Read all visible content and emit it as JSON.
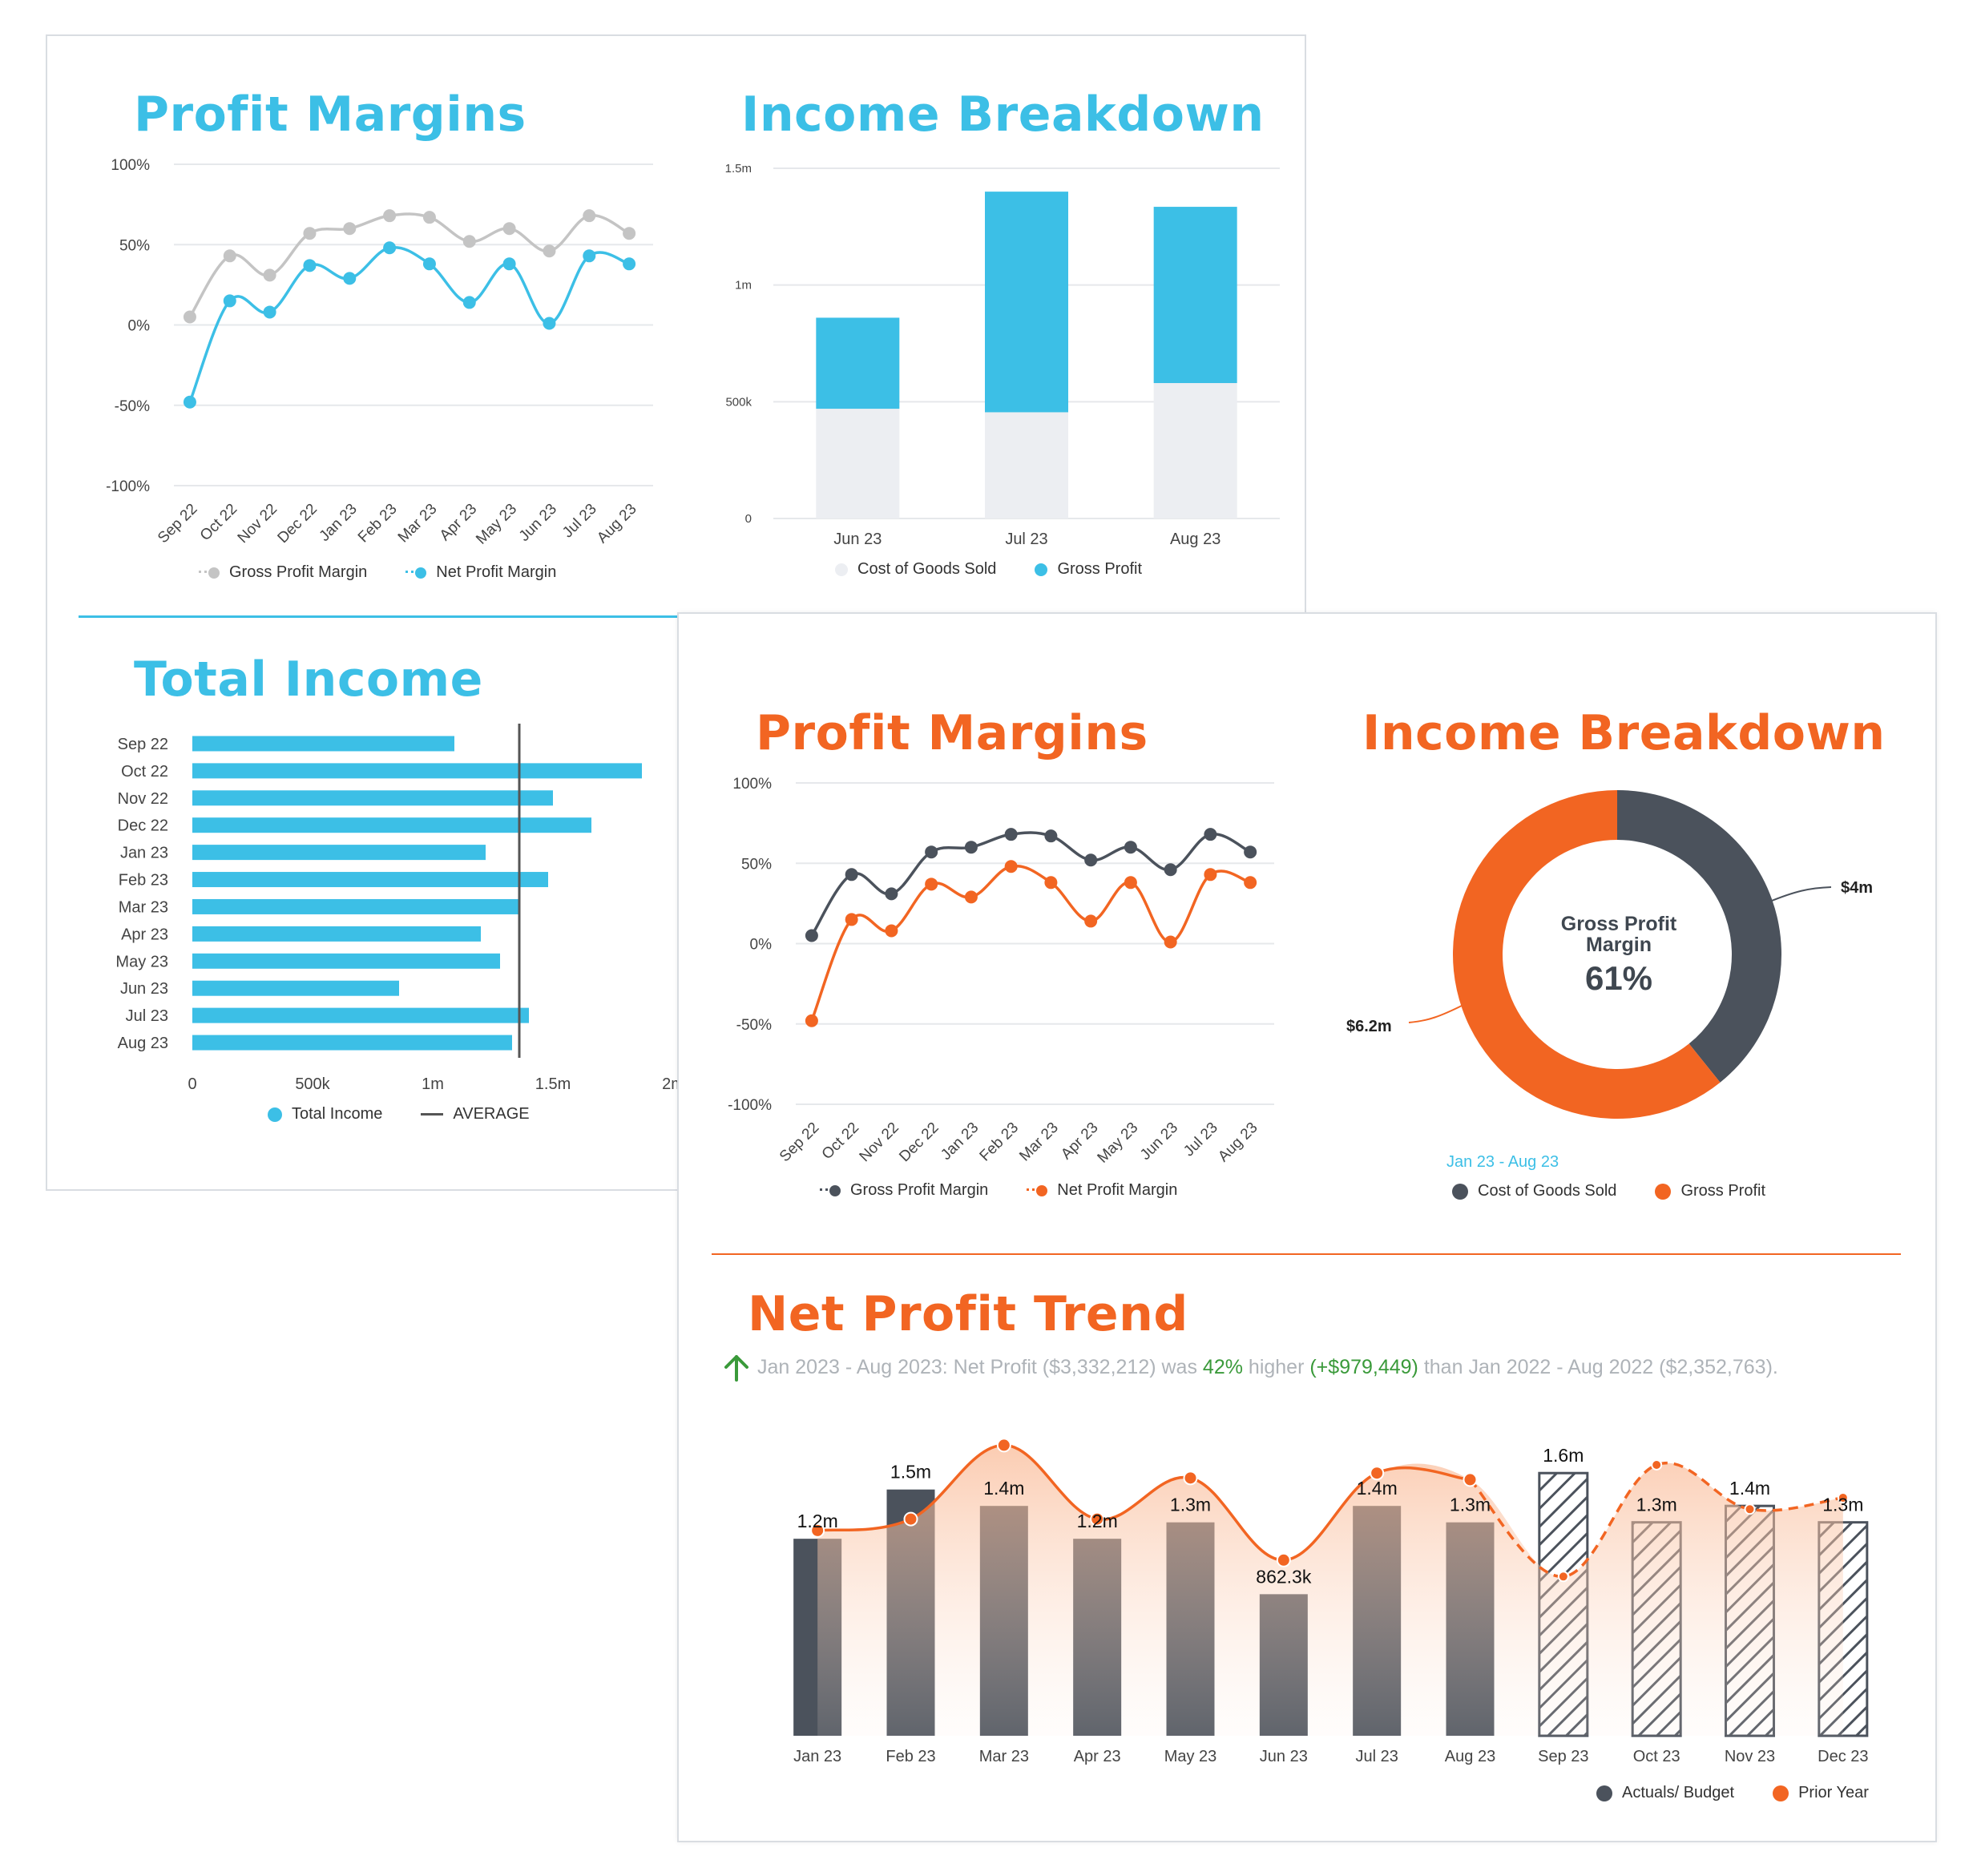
{
  "blue_dashboard": {
    "profit_margins": {
      "title": "Profit Margins",
      "legend": [
        "Gross Profit Margin",
        "Net Profit Margin"
      ]
    },
    "income_breakdown": {
      "title": "Income Breakdown",
      "legend": [
        "Cost of Goods Sold",
        "Gross Profit"
      ]
    },
    "total_income": {
      "title": "Total Income",
      "legend": [
        "Total Income",
        "AVERAGE"
      ]
    }
  },
  "orange_dashboard": {
    "profit_margins": {
      "title": "Profit Margins",
      "legend": [
        "Gross Profit Margin",
        "Net Profit Margin"
      ]
    },
    "income_breakdown": {
      "title": "Income Breakdown",
      "center_label_line1": "Gross Profit",
      "center_label_line2": "Margin",
      "center_value": "61%",
      "slice_label_cogs": "$4m",
      "slice_label_gp": "$6.2m",
      "date_range": "Jan 23 - Aug 23",
      "legend": [
        "Cost of Goods Sold",
        "Gross Profit"
      ]
    },
    "net_profit_trend": {
      "title": "Net Profit Trend",
      "summary_prefix": "Jan 2023 - Aug 2023: Net Profit ($3,332,212) was ",
      "summary_pct": "42%",
      "summary_mid": " higher ",
      "summary_diff": "(+$979,449)",
      "summary_suffix": " than Jan 2022 - Aug 2022 ($2,352,763).",
      "legend": [
        "Actuals/ Budget",
        "Prior Year"
      ]
    }
  },
  "colors": {
    "blue": "#3cbfe6",
    "grey_line": "#c4c4c4",
    "light_bar": "#eceef2",
    "orange": "#f26522",
    "dark": "#4b525c"
  },
  "chart_data": [
    {
      "id": "blue_profit_margins",
      "type": "line",
      "categories": [
        "Sep 22",
        "Oct 22",
        "Nov 22",
        "Dec 22",
        "Jan 23",
        "Feb 23",
        "Mar 23",
        "Apr 23",
        "May 23",
        "Jun 23",
        "Jul 23",
        "Aug 23"
      ],
      "series": [
        {
          "name": "Gross Profit Margin",
          "values": [
            5,
            43,
            31,
            57,
            60,
            68,
            67,
            52,
            60,
            46,
            68,
            57
          ]
        },
        {
          "name": "Net Profit Margin",
          "values": [
            -48,
            15,
            8,
            37,
            29,
            48,
            38,
            14,
            38,
            1,
            43,
            38
          ]
        }
      ],
      "ylim": [
        -100,
        100
      ],
      "yticks": [
        "100%",
        "50%",
        "0%",
        "-50%",
        "-100%"
      ],
      "ytick_values": [
        100,
        50,
        0,
        -50,
        -100
      ],
      "grid": true,
      "legend_position": "bottom"
    },
    {
      "id": "blue_income_breakdown",
      "type": "bar",
      "stacked": true,
      "categories": [
        "Jun 23",
        "Jul 23",
        "Aug 23"
      ],
      "series": [
        {
          "name": "Cost of Goods Sold",
          "values": [
            470000,
            455000,
            580000
          ]
        },
        {
          "name": "Gross Profit",
          "values": [
            390000,
            945000,
            755000
          ]
        }
      ],
      "ylim": [
        0,
        1500000
      ],
      "yticks": [
        "1.5m",
        "1m",
        "500k",
        "0"
      ],
      "ytick_values": [
        1500000,
        1000000,
        500000,
        0
      ],
      "grid": true,
      "legend_position": "bottom"
    },
    {
      "id": "blue_total_income",
      "type": "bar",
      "orientation": "horizontal",
      "categories": [
        "Sep 22",
        "Oct 22",
        "Nov 22",
        "Dec 22",
        "Jan 23",
        "Feb 23",
        "Mar 23",
        "Apr 23",
        "May 23",
        "Jun 23",
        "Jul 23",
        "Aug 23"
      ],
      "series": [
        {
          "name": "Total Income",
          "values": [
            1090000,
            1870000,
            1500000,
            1660000,
            1220000,
            1480000,
            1360000,
            1200000,
            1280000,
            860000,
            1400000,
            1330000
          ]
        }
      ],
      "average": 1360000,
      "xlim": [
        0,
        2000000
      ],
      "xticks": [
        "0",
        "500k",
        "1m",
        "1.5m",
        "2m"
      ],
      "xtick_values": [
        0,
        500000,
        1000000,
        1500000,
        2000000
      ],
      "legend_position": "bottom"
    },
    {
      "id": "orange_profit_margins",
      "type": "line",
      "categories": [
        "Sep 22",
        "Oct 22",
        "Nov 22",
        "Dec 22",
        "Jan 23",
        "Feb 23",
        "Mar 23",
        "Apr 23",
        "May 23",
        "Jun 23",
        "Jul 23",
        "Aug 23"
      ],
      "series": [
        {
          "name": "Gross Profit Margin",
          "values": [
            5,
            43,
            31,
            57,
            60,
            68,
            67,
            52,
            60,
            46,
            68,
            57
          ]
        },
        {
          "name": "Net Profit Margin",
          "values": [
            -48,
            15,
            8,
            37,
            29,
            48,
            38,
            14,
            38,
            1,
            43,
            38
          ]
        }
      ],
      "ylim": [
        -100,
        100
      ],
      "yticks": [
        "100%",
        "50%",
        "0%",
        "-50%",
        "-100%"
      ],
      "ytick_values": [
        100,
        50,
        0,
        -50,
        -100
      ],
      "grid": true,
      "legend_position": "bottom"
    },
    {
      "id": "orange_income_breakdown",
      "type": "pie",
      "donut": true,
      "categories": [
        "Cost of Goods Sold",
        "Gross Profit"
      ],
      "values": [
        4.0,
        6.2
      ],
      "unit": "m"
    },
    {
      "id": "orange_net_profit_trend",
      "type": "bar",
      "categories": [
        "Jan 23",
        "Feb 23",
        "Mar 23",
        "Apr 23",
        "May 23",
        "Jun 23",
        "Jul 23",
        "Aug 23",
        "Sep 23",
        "Oct 23",
        "Nov 23",
        "Dec 23"
      ],
      "series": [
        {
          "name": "Actuals/ Budget",
          "values": [
            1.2,
            1.5,
            1.4,
            1.2,
            1.3,
            0.8623,
            1.4,
            1.3,
            1.6,
            1.3,
            1.4,
            1.3
          ],
          "labels": [
            "1.2m",
            "1.5m",
            "1.4m",
            "1.2m",
            "1.3m",
            "862.3k",
            "1.4m",
            "1.3m",
            "1.6m",
            "1.3m",
            "1.4m",
            "1.3m"
          ],
          "budget_from_index": 8
        },
        {
          "name": "Prior Year",
          "type": "area",
          "values": [
            1.25,
            1.32,
            1.77,
            1.32,
            1.57,
            1.07,
            1.6,
            1.56,
            0.97,
            1.65,
            1.38,
            1.45
          ]
        }
      ],
      "ylim": [
        0,
        1.85
      ],
      "legend_position": "bottom-right"
    }
  ]
}
